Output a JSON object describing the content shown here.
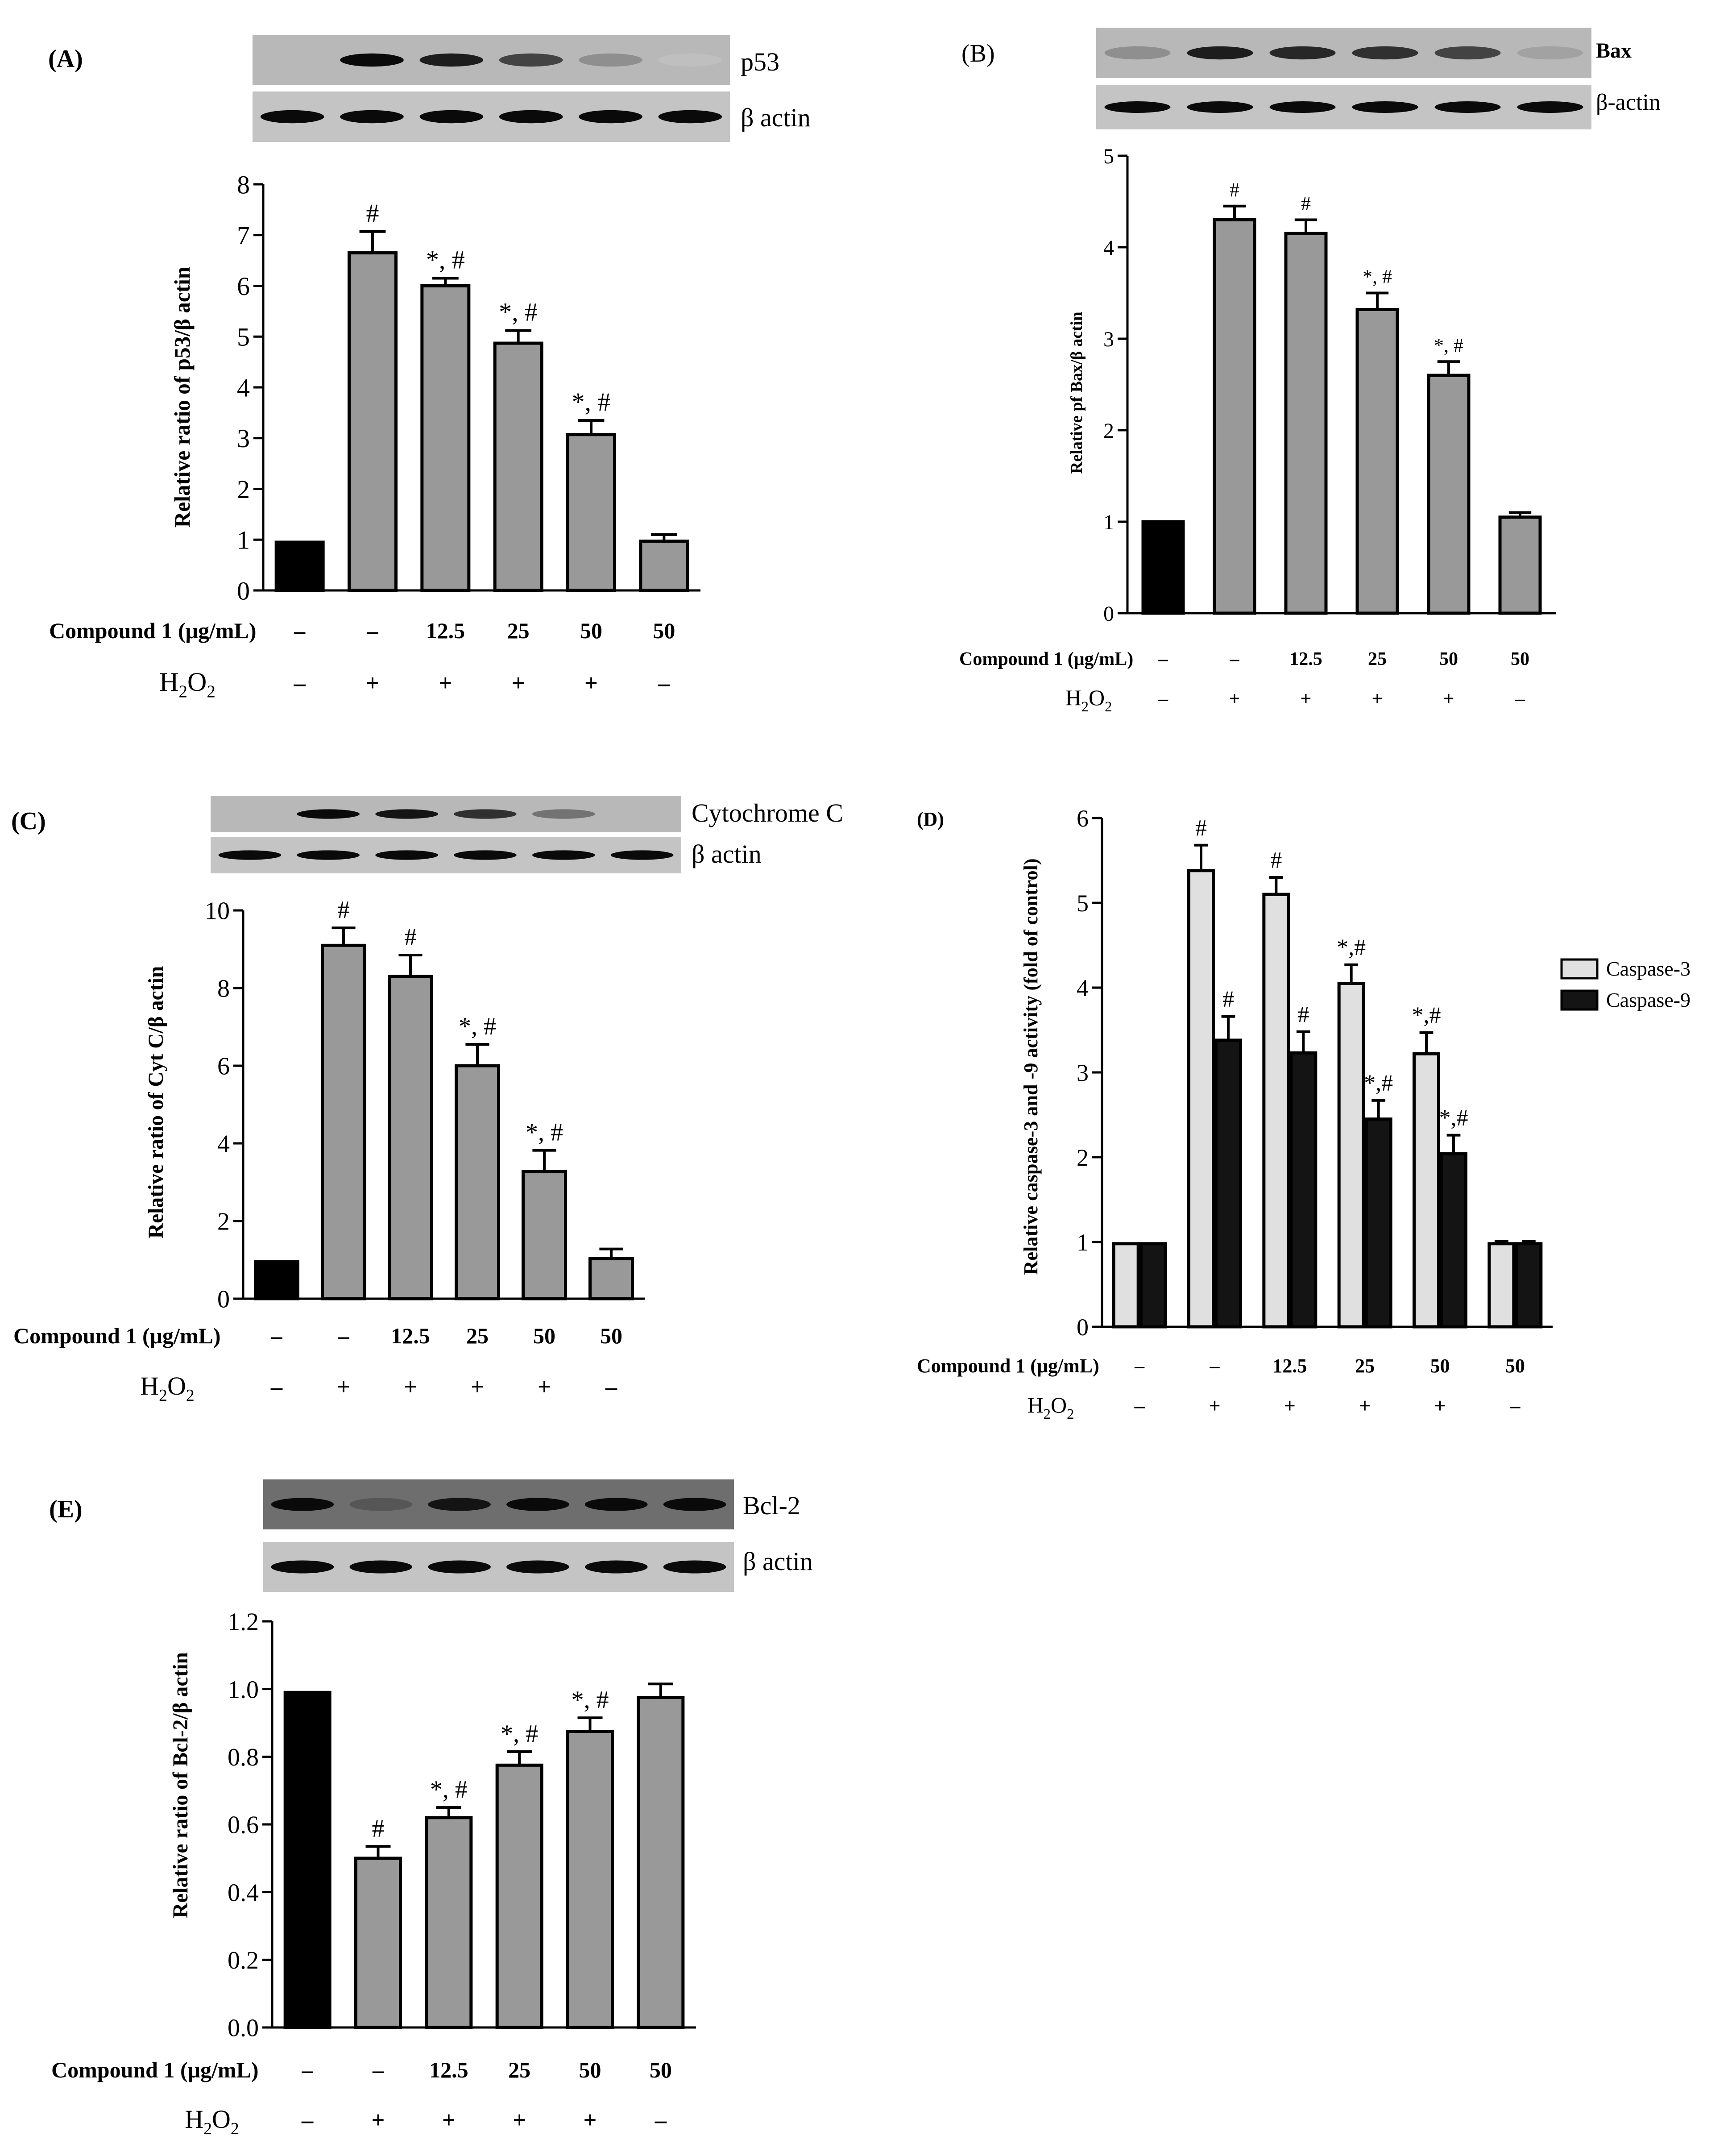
{
  "colors": {
    "gray_bar": "#999999",
    "black_bar": "#000000",
    "light_bar": "#e0e0e0",
    "dark_bar": "#141414"
  },
  "panels": {
    "A": {
      "label": "(A)",
      "blot_labels": [
        "p53",
        "β actin"
      ]
    },
    "B": {
      "label": "(B)",
      "blot_labels": [
        "Bax",
        "β-actin"
      ]
    },
    "C": {
      "label": "(C)",
      "blot_labels": [
        "Cytochrome C",
        "β actin"
      ]
    },
    "D": {
      "label": "(D)",
      "blot_labels": []
    },
    "E": {
      "label": "(E)",
      "blot_labels": [
        "Bcl-2",
        "β actin"
      ]
    }
  },
  "treatments": {
    "compound_label": "Compound 1 (μg/mL)",
    "h2o2_label": "H",
    "h2o2_sub": "2",
    "h2o2_o": "O",
    "compound_values": [
      "–",
      "–",
      "12.5",
      "25",
      "50",
      "50"
    ],
    "h2o2_values": [
      "–",
      "+",
      "+",
      "+",
      "+",
      "–"
    ]
  },
  "chart_data": [
    {
      "id": "A",
      "type": "bar",
      "ylabel": "Relative ratio of p53/β actin",
      "ylim": [
        0,
        8
      ],
      "yticks": [
        "0",
        "1",
        "2",
        "3",
        "4",
        "5",
        "6",
        "7",
        "8"
      ],
      "values": [
        0.95,
        6.65,
        6.0,
        4.87,
        3.07,
        0.97
      ],
      "errors": [
        0,
        0.42,
        0.15,
        0.25,
        0.28,
        0.13
      ],
      "annotations": [
        "",
        "#",
        "*, #",
        "*, #",
        "*, #",
        ""
      ]
    },
    {
      "id": "B",
      "type": "bar",
      "ylabel": "Relative pf Bax/β actin",
      "ylim": [
        0,
        5
      ],
      "yticks": [
        "0",
        "1",
        "2",
        "3",
        "4",
        "5"
      ],
      "values": [
        1.0,
        4.3,
        4.15,
        3.32,
        2.6,
        1.05
      ],
      "errors": [
        0,
        0.15,
        0.15,
        0.18,
        0.15,
        0.05
      ],
      "annotations": [
        "",
        "#",
        "#",
        "*, #",
        "*, #",
        ""
      ]
    },
    {
      "id": "C",
      "type": "bar",
      "ylabel": "Relative ratio of Cyt C/β actin",
      "ylim": [
        0,
        10
      ],
      "yticks": [
        "0",
        "2",
        "4",
        "6",
        "8",
        "10"
      ],
      "values": [
        0.95,
        9.1,
        8.3,
        6.0,
        3.27,
        1.03
      ],
      "errors": [
        0,
        0.45,
        0.55,
        0.55,
        0.55,
        0.25
      ],
      "annotations": [
        "",
        "#",
        "#",
        "*, #",
        "*, #",
        ""
      ]
    },
    {
      "id": "D",
      "type": "bar",
      "ylabel": "Relative caspase-3 and -9 activity (fold of control)",
      "ylim": [
        0,
        6
      ],
      "yticks": [
        "0",
        "1",
        "2",
        "3",
        "4",
        "5",
        "6"
      ],
      "legend": [
        "Caspase-3",
        "Caspase-9"
      ],
      "legend_position": "right",
      "series": [
        {
          "name": "Caspase-3",
          "values": [
            0.98,
            5.38,
            5.1,
            4.05,
            3.22,
            0.98
          ],
          "errors": [
            0,
            0.3,
            0.2,
            0.22,
            0.25,
            0.03
          ],
          "annotations": [
            "",
            "#",
            "#",
            "*,#",
            "*,#",
            ""
          ]
        },
        {
          "name": "Caspase-9",
          "values": [
            0.98,
            3.38,
            3.23,
            2.45,
            2.04,
            0.98
          ],
          "errors": [
            0,
            0.28,
            0.25,
            0.22,
            0.22,
            0.03
          ],
          "annotations": [
            "",
            "#",
            "#",
            "*,#",
            "*,#",
            ""
          ]
        }
      ]
    },
    {
      "id": "E",
      "type": "bar",
      "ylabel": "Relative ratio of Bcl-2/β actin",
      "ylim": [
        0,
        1.2
      ],
      "yticks": [
        "0.0",
        "0.2",
        "0.4",
        "0.6",
        "0.8",
        "1.0",
        "1.2"
      ],
      "values": [
        0.99,
        0.5,
        0.62,
        0.775,
        0.875,
        0.975
      ],
      "errors": [
        0,
        0.035,
        0.03,
        0.04,
        0.04,
        0.04
      ],
      "annotations": [
        "",
        "#",
        "*, #",
        "*, #",
        "*, #",
        ""
      ]
    }
  ]
}
